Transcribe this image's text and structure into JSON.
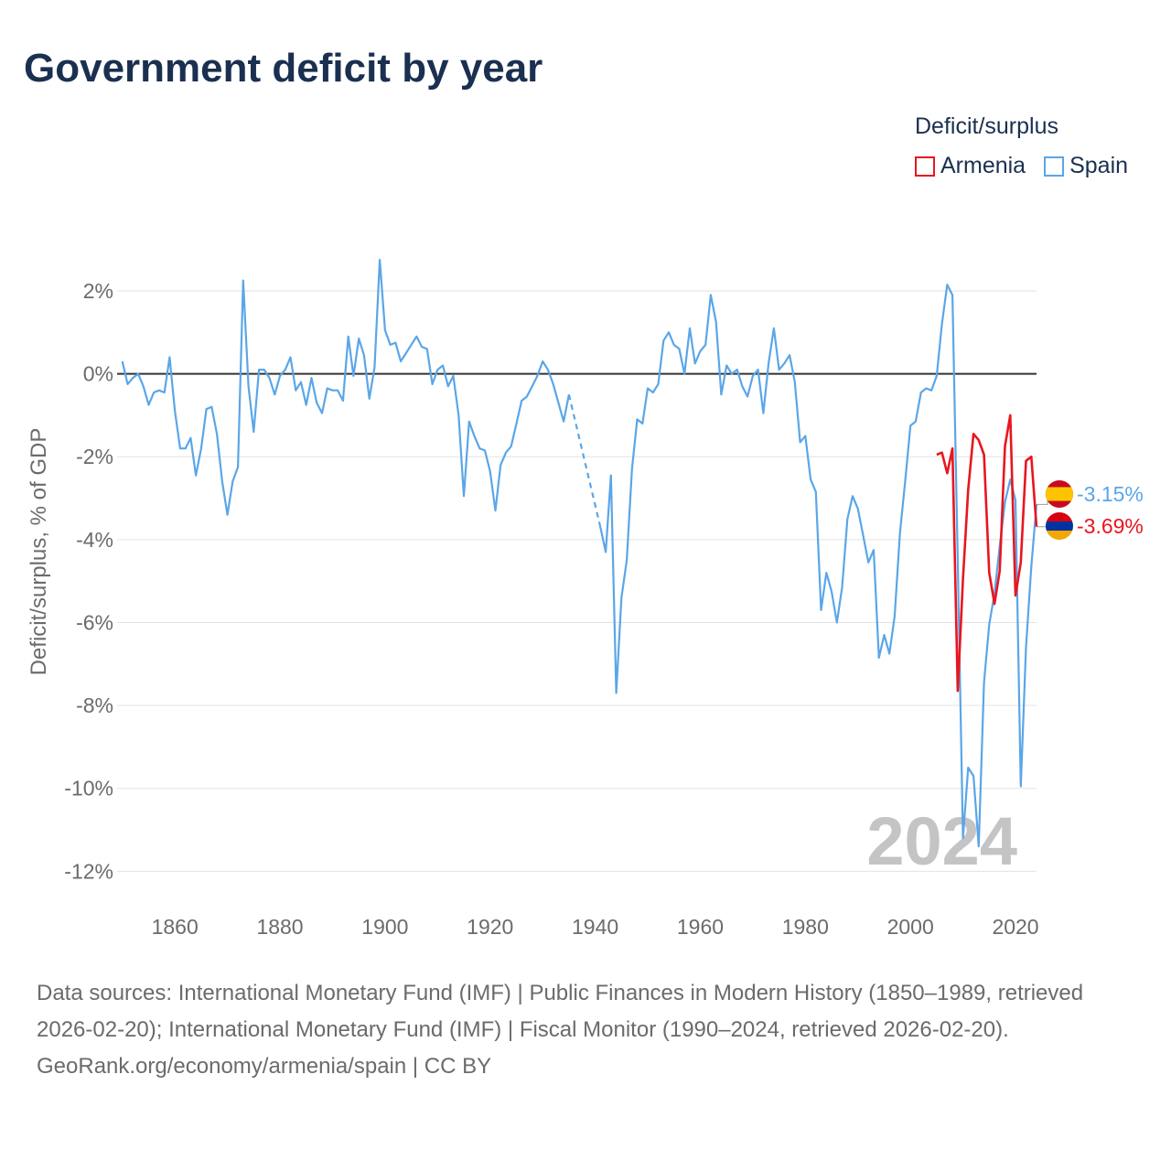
{
  "title": "Government deficit by year",
  "legend": {
    "title": "Deficit/surplus",
    "items": [
      {
        "label": "Armenia",
        "color": "#e8161f"
      },
      {
        "label": "Spain",
        "color": "#5aa6e8"
      }
    ]
  },
  "year_watermark": "2024",
  "footer": {
    "sources": "Data sources: International Monetary Fund (IMF) | Public Finances in Modern History (1850–1989, retrieved 2026-02-20); International Monetary Fund (IMF) | Fiscal Monitor (1990–2024, retrieved 2026-02-20).",
    "credit": "GeoRank.org/economy/armenia/spain | CC BY"
  },
  "chart_data": {
    "type": "line",
    "title": "Government deficit by year",
    "xlabel": "",
    "ylabel": "Deficit/surplus, % of GDP",
    "xlim": [
      1849,
      2024
    ],
    "ylim": [
      -12.5,
      3.5
    ],
    "xticks": [
      1860,
      1880,
      1900,
      1920,
      1940,
      1960,
      1980,
      2000,
      2020
    ],
    "xtick_labels": [
      "1860",
      "1880",
      "1900",
      "1920",
      "1940",
      "1960",
      "1980",
      "2000",
      "2020"
    ],
    "yticks": [
      2,
      0,
      -2,
      -4,
      -6,
      -8,
      -10,
      -12
    ],
    "ytick_labels": [
      "2%",
      "0%",
      "-2%",
      "-4%",
      "-6%",
      "-8%",
      "-10%",
      "-12%"
    ],
    "grid": true,
    "series": [
      {
        "name": "Spain",
        "color": "#5aa6e8",
        "end_label": "-3.15%",
        "flag": "spain",
        "segments": [
          {
            "style": "solid",
            "points": [
              [
                1850,
                0.3
              ],
              [
                1851,
                -0.25
              ],
              [
                1852,
                -0.1
              ],
              [
                1853,
                0.0
              ],
              [
                1854,
                -0.3
              ],
              [
                1855,
                -0.75
              ],
              [
                1856,
                -0.45
              ],
              [
                1857,
                -0.4
              ],
              [
                1858,
                -0.45
              ],
              [
                1859,
                0.4
              ],
              [
                1860,
                -0.9
              ],
              [
                1861,
                -1.8
              ],
              [
                1862,
                -1.8
              ],
              [
                1863,
                -1.55
              ],
              [
                1864,
                -2.45
              ],
              [
                1865,
                -1.8
              ],
              [
                1866,
                -0.85
              ],
              [
                1867,
                -0.8
              ],
              [
                1868,
                -1.45
              ],
              [
                1869,
                -2.6
              ],
              [
                1870,
                -3.4
              ],
              [
                1871,
                -2.6
              ],
              [
                1872,
                -2.25
              ],
              [
                1873,
                2.25
              ],
              [
                1874,
                -0.3
              ],
              [
                1875,
                -1.4
              ],
              [
                1876,
                0.1
              ],
              [
                1877,
                0.1
              ],
              [
                1878,
                -0.1
              ],
              [
                1879,
                -0.5
              ],
              [
                1880,
                -0.05
              ],
              [
                1881,
                0.1
              ],
              [
                1882,
                0.4
              ],
              [
                1883,
                -0.4
              ],
              [
                1884,
                -0.2
              ],
              [
                1885,
                -0.75
              ],
              [
                1886,
                -0.1
              ],
              [
                1887,
                -0.7
              ],
              [
                1888,
                -0.95
              ],
              [
                1889,
                -0.35
              ],
              [
                1890,
                -0.4
              ],
              [
                1891,
                -0.4
              ],
              [
                1892,
                -0.65
              ],
              [
                1893,
                0.9
              ],
              [
                1894,
                -0.05
              ],
              [
                1895,
                0.85
              ],
              [
                1896,
                0.45
              ],
              [
                1897,
                -0.6
              ],
              [
                1898,
                0.15
              ],
              [
                1899,
                2.75
              ],
              [
                1900,
                1.05
              ],
              [
                1901,
                0.7
              ],
              [
                1902,
                0.75
              ],
              [
                1903,
                0.3
              ],
              [
                1904,
                0.5
              ],
              [
                1905,
                0.7
              ],
              [
                1906,
                0.9
              ],
              [
                1907,
                0.65
              ],
              [
                1908,
                0.6
              ],
              [
                1909,
                -0.25
              ],
              [
                1910,
                0.1
              ],
              [
                1911,
                0.2
              ],
              [
                1912,
                -0.3
              ],
              [
                1913,
                -0.05
              ],
              [
                1914,
                -1.0
              ],
              [
                1915,
                -2.95
              ],
              [
                1916,
                -1.15
              ],
              [
                1917,
                -1.5
              ],
              [
                1918,
                -1.8
              ],
              [
                1919,
                -1.85
              ],
              [
                1920,
                -2.35
              ],
              [
                1921,
                -3.3
              ],
              [
                1922,
                -2.2
              ],
              [
                1923,
                -1.9
              ],
              [
                1924,
                -1.75
              ],
              [
                1925,
                -1.2
              ],
              [
                1926,
                -0.65
              ],
              [
                1927,
                -0.55
              ],
              [
                1928,
                -0.3
              ],
              [
                1929,
                -0.05
              ],
              [
                1930,
                0.3
              ],
              [
                1931,
                0.1
              ],
              [
                1932,
                -0.25
              ],
              [
                1933,
                -0.7
              ],
              [
                1934,
                -1.15
              ],
              [
                1935,
                -0.5
              ]
            ]
          },
          {
            "style": "dashed",
            "points": [
              [
                1935,
                -0.5
              ],
              [
                1941,
                -3.7
              ]
            ]
          },
          {
            "style": "solid",
            "points": [
              [
                1941,
                -3.7
              ],
              [
                1942,
                -4.3
              ],
              [
                1943,
                -2.45
              ],
              [
                1944,
                -7.7
              ],
              [
                1945,
                -5.4
              ],
              [
                1946,
                -4.5
              ],
              [
                1947,
                -2.3
              ],
              [
                1948,
                -1.1
              ],
              [
                1949,
                -1.2
              ],
              [
                1950,
                -0.35
              ],
              [
                1951,
                -0.45
              ],
              [
                1952,
                -0.25
              ],
              [
                1953,
                0.8
              ],
              [
                1954,
                1.0
              ],
              [
                1955,
                0.7
              ],
              [
                1956,
                0.6
              ],
              [
                1957,
                0.0
              ],
              [
                1958,
                1.1
              ],
              [
                1959,
                0.25
              ],
              [
                1960,
                0.55
              ],
              [
                1961,
                0.7
              ],
              [
                1962,
                1.9
              ],
              [
                1963,
                1.25
              ],
              [
                1964,
                -0.5
              ],
              [
                1965,
                0.2
              ],
              [
                1966,
                0.0
              ],
              [
                1967,
                0.1
              ],
              [
                1968,
                -0.3
              ],
              [
                1969,
                -0.55
              ],
              [
                1970,
                -0.05
              ],
              [
                1971,
                0.1
              ],
              [
                1972,
                -0.95
              ],
              [
                1973,
                0.25
              ],
              [
                1974,
                1.1
              ],
              [
                1975,
                0.1
              ],
              [
                1976,
                0.25
              ],
              [
                1977,
                0.45
              ],
              [
                1978,
                -0.2
              ],
              [
                1979,
                -1.65
              ],
              [
                1980,
                -1.5
              ],
              [
                1981,
                -2.55
              ],
              [
                1982,
                -2.85
              ],
              [
                1983,
                -5.7
              ],
              [
                1984,
                -4.8
              ],
              [
                1985,
                -5.25
              ],
              [
                1986,
                -6.0
              ],
              [
                1987,
                -5.15
              ],
              [
                1988,
                -3.5
              ],
              [
                1989,
                -2.95
              ],
              [
                1990,
                -3.25
              ],
              [
                1991,
                -3.9
              ],
              [
                1992,
                -4.55
              ],
              [
                1993,
                -4.25
              ],
              [
                1994,
                -6.85
              ],
              [
                1995,
                -6.3
              ],
              [
                1996,
                -6.75
              ],
              [
                1997,
                -5.85
              ],
              [
                1998,
                -3.85
              ],
              [
                1999,
                -2.6
              ],
              [
                2000,
                -1.25
              ],
              [
                2001,
                -1.15
              ],
              [
                2002,
                -0.45
              ],
              [
                2003,
                -0.35
              ],
              [
                2004,
                -0.4
              ],
              [
                2005,
                -0.05
              ],
              [
                2006,
                1.2
              ],
              [
                2007,
                2.15
              ],
              [
                2008,
                1.9
              ],
              [
                2009,
                -4.5
              ],
              [
                2010,
                -11.2
              ],
              [
                2011,
                -9.5
              ],
              [
                2012,
                -9.7
              ],
              [
                2013,
                -11.4
              ],
              [
                2014,
                -7.45
              ],
              [
                2015,
                -6.05
              ],
              [
                2016,
                -5.3
              ],
              [
                2017,
                -4.15
              ],
              [
                2018,
                -3.1
              ],
              [
                2019,
                -2.55
              ],
              [
                2020,
                -3.05
              ],
              [
                2021,
                -9.95
              ],
              [
                2022,
                -6.6
              ],
              [
                2023,
                -4.65
              ],
              [
                2024,
                -3.15
              ]
            ]
          }
        ]
      },
      {
        "name": "Armenia",
        "color": "#e8161f",
        "end_label": "-3.69%",
        "flag": "armenia",
        "segments": [
          {
            "style": "solid",
            "points": [
              [
                2005,
                -1.95
              ],
              [
                2006,
                -1.9
              ],
              [
                2007,
                -2.4
              ],
              [
                2008,
                -1.8
              ],
              [
                2009,
                -7.65
              ],
              [
                2010,
                -4.95
              ],
              [
                2011,
                -2.8
              ],
              [
                2012,
                -1.45
              ],
              [
                2013,
                -1.6
              ],
              [
                2014,
                -1.95
              ],
              [
                2015,
                -4.8
              ],
              [
                2016,
                -5.55
              ],
              [
                2017,
                -4.75
              ],
              [
                2018,
                -1.75
              ],
              [
                2019,
                -1.0
              ],
              [
                2020,
                -5.35
              ],
              [
                2021,
                -4.55
              ],
              [
                2022,
                -2.1
              ],
              [
                2023,
                -2.0
              ],
              [
                2024,
                -3.69
              ]
            ]
          }
        ]
      }
    ]
  }
}
